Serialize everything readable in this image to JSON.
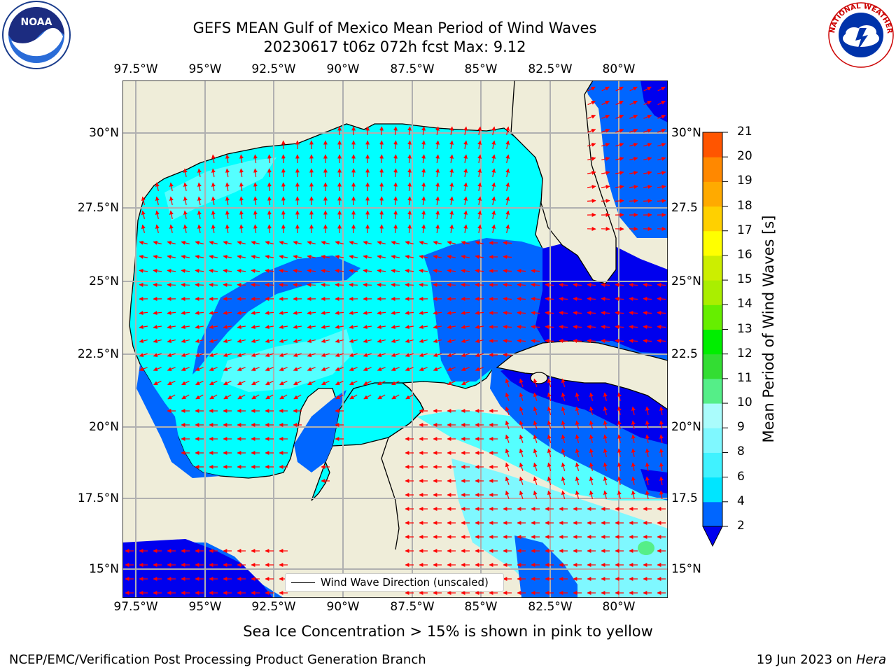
{
  "title": {
    "line1": "GEFS MEAN Gulf of Mexico Mean Period of Wind Waves",
    "line2": "20230617 t06z 072h fcst   Max: 9.12"
  },
  "lon_labels": [
    "97.5°W",
    "95°W",
    "92.5°W",
    "90°W",
    "87.5°W",
    "85°W",
    "82.5°W",
    "80°W"
  ],
  "lat_labels": [
    "30°N",
    "27.5°N",
    "25°N",
    "22.5°N",
    "20°N",
    "17.5°N",
    "15°N"
  ],
  "lat_labels_right": [
    "30°N",
    "27.5",
    "25°N",
    "22.5",
    "20°N",
    "17.5",
    "15°N"
  ],
  "colorbar": {
    "label": "Mean Period of Wind Waves [s]",
    "ticks": [
      "2",
      "4",
      "6",
      "8",
      "9",
      "10",
      "11",
      "12",
      "13",
      "14",
      "15",
      "16",
      "17",
      "18",
      "19",
      "20",
      "21"
    ],
    "colors": [
      "#0066ff",
      "#00e5ff",
      "#40f2ff",
      "#7ff8ff",
      "#aafcfc",
      "#55ee88",
      "#33dd33",
      "#00ee00",
      "#66ee00",
      "#aaee00",
      "#ccee00",
      "#ffff00",
      "#ffd000",
      "#ffaa00",
      "#ff8800",
      "#ff5500",
      "#ff2200",
      "#ff0000"
    ],
    "extend_color": "#0000ee"
  },
  "legend": {
    "label": "Wind Wave Direction (unscaled)"
  },
  "note": "Sea Ice Concentration > 15% is shown in pink to yellow",
  "footer": {
    "left": "NCEP/EMC/Verification Post Processing Product Generation Branch",
    "right_date": "19 Jun 2023 on ",
    "right_host": "Hera"
  },
  "logos": {
    "noaa_text": "NOAA",
    "nws_text": "NATIONAL WEATHER SERVICE"
  },
  "map_colors": {
    "land": "#efedd9",
    "gulf": "#00ffff",
    "lighter": "#55ffff",
    "blue": "#0066ff",
    "deep": "#0000ee",
    "arrow": "#ff0000"
  }
}
